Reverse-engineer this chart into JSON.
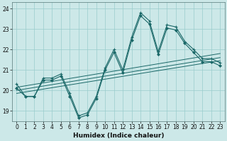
{
  "xlabel": "Humidex (Indice chaleur)",
  "bg_color": "#cce8e8",
  "grid_color": "#99cccc",
  "line_color": "#1a6868",
  "xlim": [
    -0.5,
    23.5
  ],
  "ylim": [
    18.5,
    24.3
  ],
  "yticks": [
    19,
    20,
    21,
    22,
    23,
    24
  ],
  "xticks": [
    0,
    1,
    2,
    3,
    4,
    5,
    6,
    7,
    8,
    9,
    10,
    11,
    12,
    13,
    14,
    15,
    16,
    17,
    18,
    19,
    20,
    21,
    22,
    23
  ],
  "series": {
    "line1_x": [
      0,
      1,
      2,
      3,
      4,
      5,
      6,
      7,
      8,
      9,
      10,
      11,
      12,
      13,
      14,
      15,
      16,
      17,
      18,
      19,
      20,
      21,
      22,
      23
    ],
    "line1_y": [
      20.3,
      19.7,
      19.7,
      20.6,
      20.6,
      20.8,
      19.85,
      18.75,
      18.9,
      19.7,
      21.1,
      22.0,
      21.0,
      22.6,
      23.8,
      23.4,
      21.9,
      23.2,
      23.1,
      22.4,
      22.0,
      21.55,
      21.55,
      21.35
    ],
    "line2_x": [
      0,
      1,
      2,
      3,
      4,
      5,
      6,
      7,
      8,
      9,
      10,
      11,
      12,
      13,
      14,
      15,
      16,
      17,
      18,
      19,
      20,
      21,
      22,
      23
    ],
    "line2_y": [
      20.1,
      19.7,
      19.7,
      20.5,
      20.5,
      20.7,
      19.7,
      18.65,
      18.8,
      19.6,
      21.0,
      21.85,
      20.85,
      22.45,
      23.65,
      23.25,
      21.75,
      23.05,
      22.95,
      22.3,
      21.85,
      21.4,
      21.4,
      21.2
    ],
    "trend1_start": 19.85,
    "trend1_end": 21.45,
    "trend2_start": 20.0,
    "trend2_end": 21.6,
    "trend3_start": 20.15,
    "trend3_end": 21.8
  }
}
